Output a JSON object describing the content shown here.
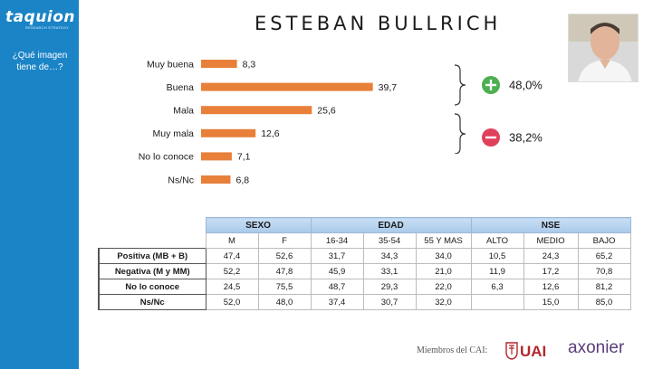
{
  "brand": {
    "name": "taquion",
    "tagline": "RESEARCH STRATEGY"
  },
  "sidebar": {
    "question": "¿Qué imagen tiene de…?"
  },
  "page": {
    "title": "ESTEBAN BULLRICH"
  },
  "colors": {
    "bar": "#e8803a",
    "sidebar": "#1b84c6",
    "positive": "#4caf50",
    "negative": "#e0405a",
    "header": "#b8d3ef"
  },
  "chart_data": {
    "type": "bar",
    "orientation": "horizontal",
    "categories": [
      "Muy buena",
      "Buena",
      "Mala",
      "Muy mala",
      "No lo conoce",
      "Ns/Nc"
    ],
    "values": [
      8.3,
      39.7,
      25.6,
      12.6,
      7.1,
      6.8
    ],
    "value_labels": [
      "8,3",
      "39,7",
      "25,6",
      "12,6",
      "7,1",
      "6,8"
    ],
    "xlim": [
      0,
      45
    ],
    "grid": false
  },
  "summary": {
    "positive": {
      "icon": "plus-icon",
      "value": "48,0%"
    },
    "negative": {
      "icon": "minus-icon",
      "value": "38,2%"
    }
  },
  "table": {
    "groups": [
      {
        "label": "SEXO",
        "span": 2
      },
      {
        "label": "EDAD",
        "span": 3
      },
      {
        "label": "NSE",
        "span": 3
      }
    ],
    "columns": [
      "M",
      "F",
      "16-34",
      "35-54",
      "55 Y MAS",
      "ALTO",
      "MEDIO",
      "BAJO"
    ],
    "rows": [
      {
        "label": "Positiva (MB + B)",
        "values": [
          "47,4",
          "52,6",
          "31,7",
          "34,3",
          "34,0",
          "10,5",
          "24,3",
          "65,2"
        ]
      },
      {
        "label": "Negativa (M y MM)",
        "values": [
          "52,2",
          "47,8",
          "45,9",
          "33,1",
          "21,0",
          "11,9",
          "17,2",
          "70,8"
        ]
      },
      {
        "label": "No lo conoce",
        "values": [
          "24,5",
          "75,5",
          "48,7",
          "29,3",
          "22,0",
          "6,3",
          "12,6",
          "81,2"
        ]
      },
      {
        "label": "Ns/Nc",
        "values": [
          "52,0",
          "48,0",
          "37,4",
          "30,7",
          "32,0",
          "",
          "15,0",
          "85,0"
        ]
      }
    ]
  },
  "footer": {
    "members": "Miembros del CAI:",
    "logo1": "UAI",
    "logo2": "axonier"
  }
}
